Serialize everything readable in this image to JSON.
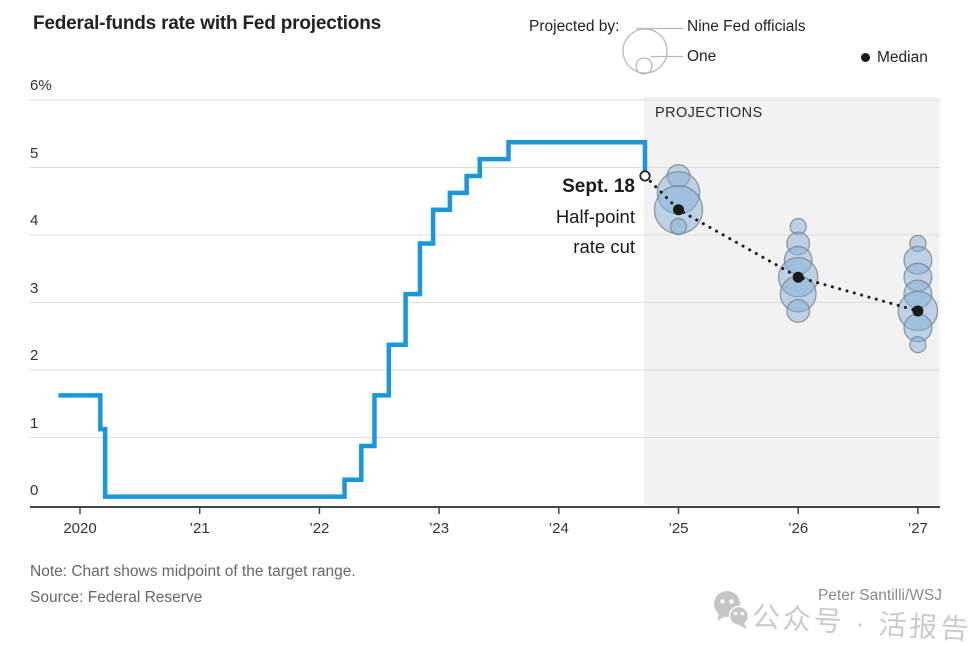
{
  "header": {
    "title": "Federal-funds rate with Fed projections",
    "legend": {
      "projected_by_label": "Projected by:",
      "nine_label": "Nine Fed officials",
      "one_label": "One",
      "median_label": "Median"
    }
  },
  "projections_band_label": "PROJECTIONS",
  "annotation": {
    "date": "Sept. 18",
    "line1": "Half-point",
    "line2": "rate cut"
  },
  "footer": {
    "note": "Note: Chart shows midpoint of the target range.",
    "source": "Source: Federal Reserve",
    "credit": "Peter Santilli/WSJ",
    "watermark": "公众号 · 活报告"
  },
  "colors": {
    "line_blue": "#1a96dc",
    "band_gray": "#f2f2f2",
    "bubble_fill": "#86afd8",
    "bubble_stroke": "#79828c",
    "grid": "#dcdcdc",
    "axis": "#444444",
    "median_black": "#1a1a1a"
  },
  "chart_data": {
    "type": "line",
    "title": "Federal-funds rate with Fed projections",
    "xlabel": "",
    "ylabel": "",
    "ylim": [
      0,
      6
    ],
    "xlim": [
      2019.75,
      2027.18
    ],
    "grid": true,
    "legend_position": "top-right",
    "y_ticks": {
      "values": [
        6,
        5,
        4,
        3,
        2,
        1,
        0
      ],
      "labels": [
        "6%",
        "5",
        "4",
        "3",
        "2",
        "1",
        "0"
      ]
    },
    "x_ticks": {
      "years": [
        2020,
        2021,
        2022,
        2023,
        2024,
        2025,
        2026,
        2027
      ],
      "labels": [
        "2020",
        "’21",
        "’22",
        "’23",
        "’24",
        "’25",
        "’26",
        "’27"
      ]
    },
    "rate_path_steps": [
      [
        2019.82,
        1.625
      ],
      [
        2020.17,
        1.125
      ],
      [
        2020.21,
        0.125
      ],
      [
        2022.21,
        0.375
      ],
      [
        2022.35,
        0.875
      ],
      [
        2022.46,
        1.625
      ],
      [
        2022.58,
        2.375
      ],
      [
        2022.72,
        3.125
      ],
      [
        2022.84,
        3.875
      ],
      [
        2022.95,
        4.375
      ],
      [
        2023.09,
        4.625
      ],
      [
        2023.23,
        4.875
      ],
      [
        2023.34,
        5.125
      ],
      [
        2023.58,
        5.375
      ],
      [
        2024.72,
        4.875
      ]
    ],
    "cut_marker": {
      "x": 2024.72,
      "rate": 4.875
    },
    "projections_band": {
      "x_start": 2024.71,
      "x_end": 2027.18
    },
    "projection_clusters": [
      {
        "year": 2025,
        "median": 4.375,
        "dots": [
          {
            "rate": 4.875,
            "officials": 2
          },
          {
            "rate": 4.625,
            "officials": 7
          },
          {
            "rate": 4.375,
            "officials": 9
          },
          {
            "rate": 4.125,
            "officials": 1
          }
        ]
      },
      {
        "year": 2026,
        "median": 3.375,
        "dots": [
          {
            "rate": 4.125,
            "officials": 1
          },
          {
            "rate": 3.875,
            "officials": 2
          },
          {
            "rate": 3.625,
            "officials": 3
          },
          {
            "rate": 3.375,
            "officials": 6
          },
          {
            "rate": 3.125,
            "officials": 5
          },
          {
            "rate": 2.875,
            "officials": 2
          }
        ]
      },
      {
        "year": 2027,
        "median": 2.875,
        "dots": [
          {
            "rate": 3.875,
            "officials": 1
          },
          {
            "rate": 3.625,
            "officials": 3
          },
          {
            "rate": 3.375,
            "officials": 3
          },
          {
            "rate": 3.125,
            "officials": 3
          },
          {
            "rate": 2.875,
            "officials": 6
          },
          {
            "rate": 2.625,
            "officials": 3
          },
          {
            "rate": 2.375,
            "officials": 1
          }
        ]
      }
    ],
    "median_line": [
      [
        2024.72,
        4.875
      ],
      [
        2025,
        4.375
      ],
      [
        2026,
        3.375
      ],
      [
        2027,
        2.875
      ]
    ]
  }
}
